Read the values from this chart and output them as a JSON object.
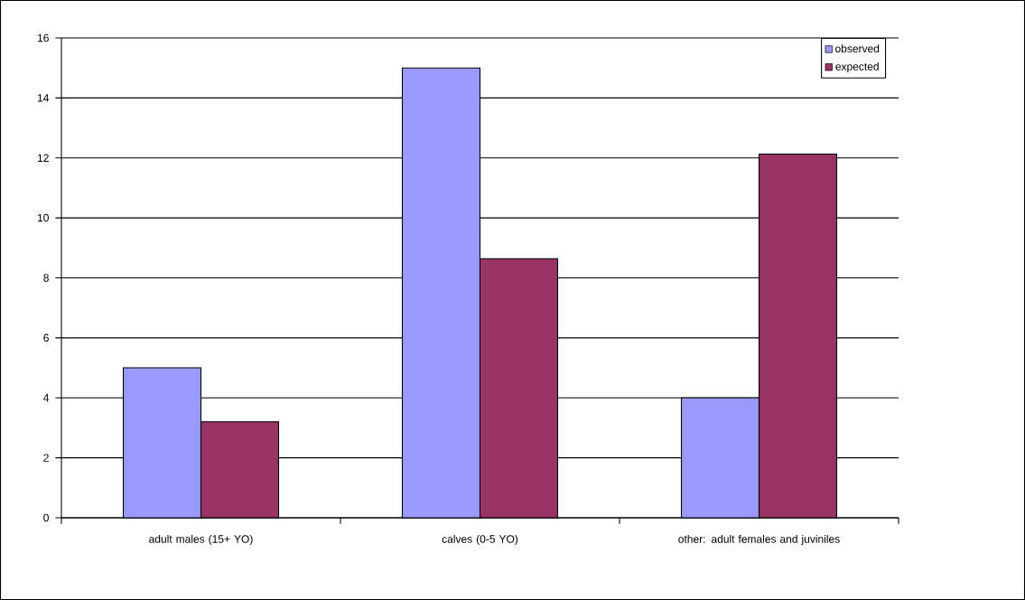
{
  "chart_data": {
    "type": "bar",
    "categories": [
      "adult males (15+ YO)",
      "calves (0-5 YO)",
      "other: adult females and juviniles"
    ],
    "series": [
      {
        "name": "observed",
        "color": "#9999ff",
        "values": [
          5,
          15,
          4
        ]
      },
      {
        "name": "expected",
        "color": "#993366",
        "values": [
          3.2,
          8.64,
          12.13
        ]
      }
    ],
    "ylim": [
      0,
      16
    ],
    "yticks": [
      0,
      2,
      4,
      6,
      8,
      10,
      12,
      14,
      16
    ],
    "grid": "y",
    "legend": "top right"
  }
}
